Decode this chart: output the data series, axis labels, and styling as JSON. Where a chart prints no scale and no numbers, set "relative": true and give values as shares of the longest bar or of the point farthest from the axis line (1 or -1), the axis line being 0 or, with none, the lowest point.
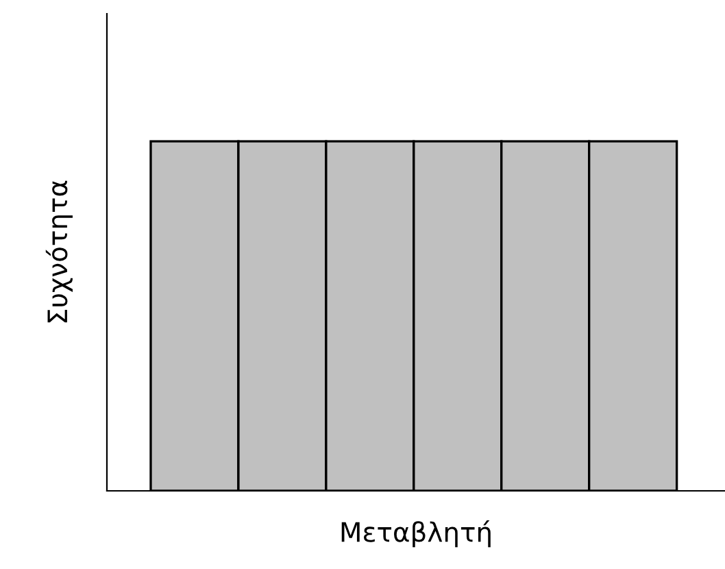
{
  "chart_data": {
    "type": "bar",
    "relative": true,
    "xlabel": "Μεταβλητή",
    "ylabel": "Συχνότητα",
    "categories": [
      null,
      null,
      null,
      null,
      null,
      null
    ],
    "values": [
      1,
      1,
      1,
      1,
      1,
      1
    ],
    "color": "#c0c0c0",
    "grid": false,
    "legend": false
  }
}
